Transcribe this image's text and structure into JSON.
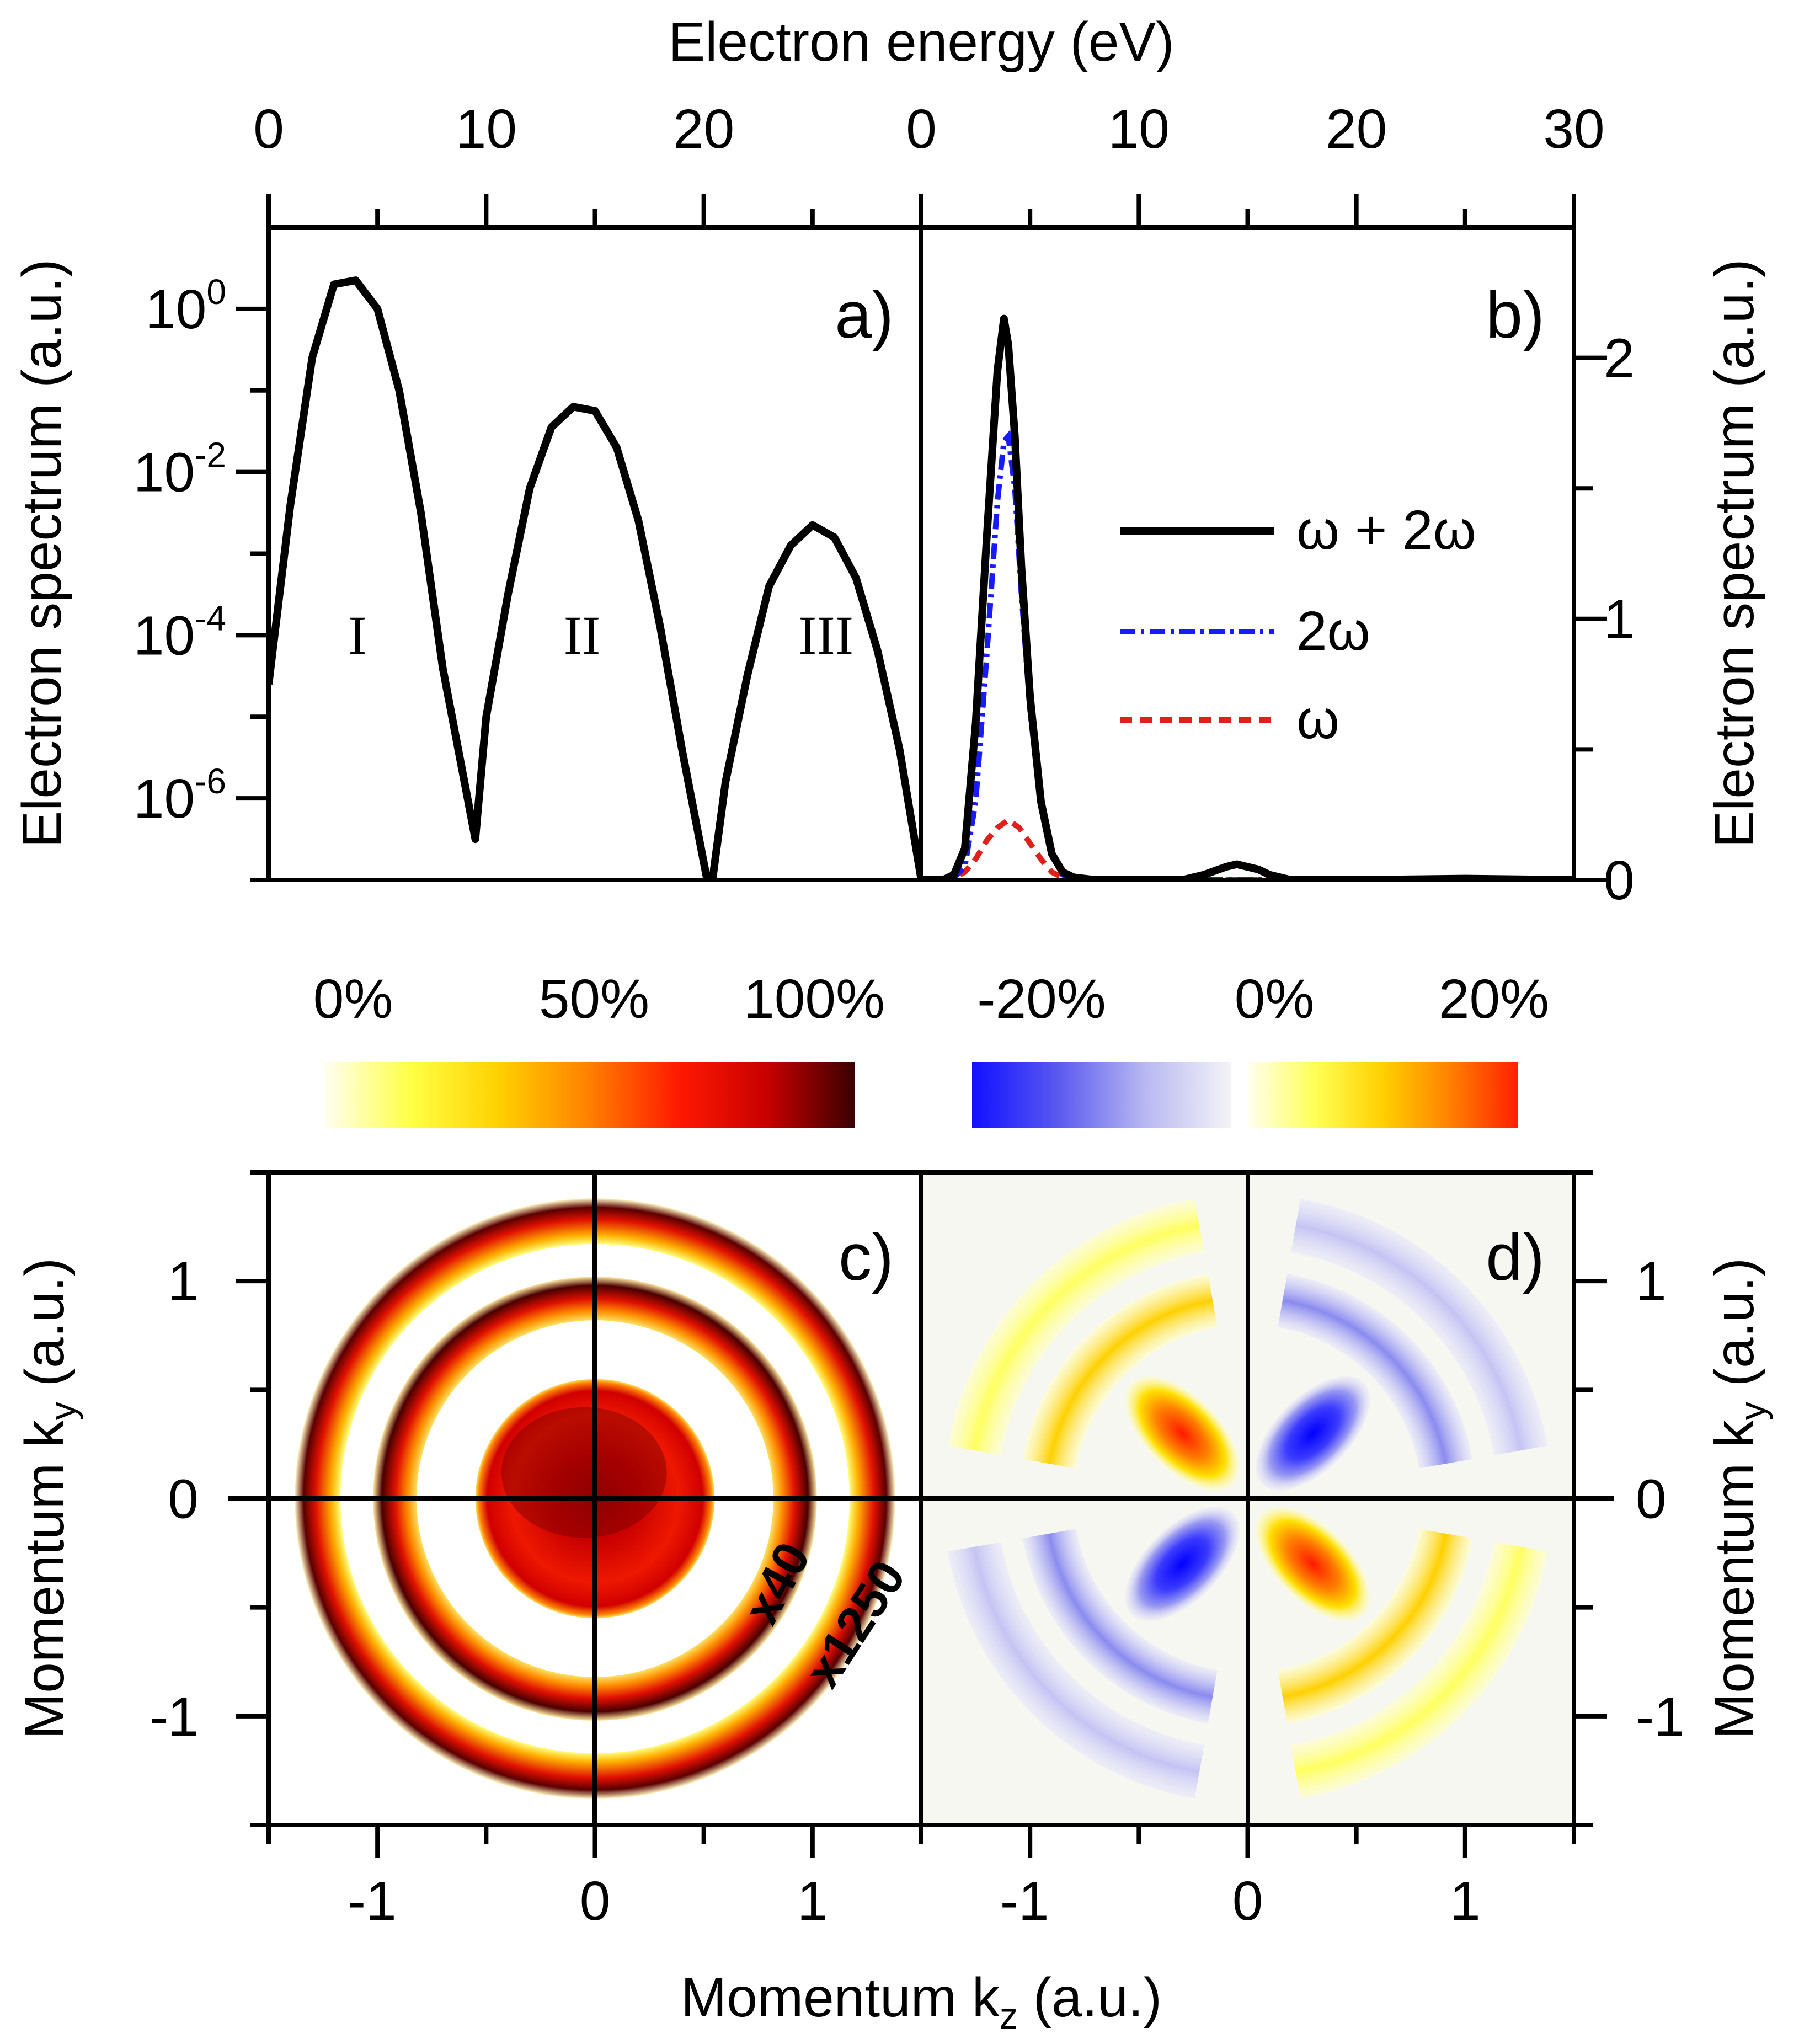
{
  "chart_data": [
    {
      "panel": "a)",
      "type": "line",
      "title": "",
      "top_axis_label": "Electron energy (eV)",
      "xlim": [
        0,
        30
      ],
      "xticks": [
        0,
        10,
        20
      ],
      "ylabel": "Electron spectrum (a.u.)",
      "yscale": "log",
      "ylim_exp": [
        -7,
        1
      ],
      "ytick_exponents": [
        0,
        -2,
        -4,
        -6
      ],
      "yticks": [
        "10^0",
        "10^-2",
        "10^-4",
        "10^-6"
      ],
      "region_labels": [
        "I",
        "II",
        "III"
      ],
      "series": [
        {
          "name": "ω + 2ω",
          "color": "#000000",
          "x": [
            0,
            1,
            2,
            3,
            4,
            5,
            6,
            7,
            8,
            9.5,
            10,
            11,
            12,
            13,
            14,
            15,
            16,
            17,
            18,
            19,
            20.3,
            21,
            22,
            23,
            24,
            25,
            26,
            27,
            28,
            29,
            30
          ],
          "log10_y": [
            -4.6,
            -2.4,
            -0.6,
            0.3,
            0.35,
            0.0,
            -1.0,
            -2.5,
            -4.4,
            -6.5,
            -5.0,
            -3.5,
            -2.2,
            -1.45,
            -1.2,
            -1.25,
            -1.7,
            -2.6,
            -3.9,
            -5.4,
            -7.2,
            -5.8,
            -4.5,
            -3.4,
            -2.9,
            -2.65,
            -2.8,
            -3.3,
            -4.2,
            -5.4,
            -7.0
          ]
        }
      ]
    },
    {
      "panel": "b)",
      "type": "line",
      "top_axis_label": "Electron energy (eV)",
      "xlim": [
        0,
        30
      ],
      "xticks": [
        0,
        10,
        20,
        30
      ],
      "ylabel": "Electron spectrum (a.u.)",
      "ylim": [
        0,
        2.5
      ],
      "yticks": [
        0,
        1,
        2
      ],
      "legend": [
        "ω + 2ω",
        "2ω",
        "ω"
      ],
      "series": [
        {
          "name": "ω + 2ω",
          "color": "#000000",
          "style": "solid",
          "x": [
            0,
            1,
            1.5,
            2,
            2.5,
            3,
            3.5,
            3.8,
            4,
            4.3,
            4.6,
            5,
            5.5,
            6,
            6.5,
            7,
            8,
            10,
            12,
            13,
            14,
            14.5,
            15,
            15.5,
            16,
            17,
            18,
            20,
            25,
            30
          ],
          "y": [
            0,
            0.0,
            0.02,
            0.12,
            0.6,
            1.3,
            1.95,
            2.15,
            2.05,
            1.7,
            1.2,
            0.7,
            0.3,
            0.1,
            0.03,
            0.01,
            0.0,
            0.0,
            0.0,
            0.02,
            0.05,
            0.06,
            0.05,
            0.04,
            0.02,
            0.0,
            0.0,
            0.0,
            0.005,
            0.0
          ]
        },
        {
          "name": "2ω",
          "color": "#1a1aff",
          "style": "dash-dot",
          "x": [
            0,
            1,
            1.5,
            2,
            2.5,
            3,
            3.5,
            3.8,
            4,
            4.3,
            4.6,
            5,
            5.5,
            6,
            6.5,
            7,
            8,
            30
          ],
          "y": [
            0,
            0.0,
            0.01,
            0.05,
            0.3,
            0.85,
            1.45,
            1.68,
            1.7,
            1.5,
            1.1,
            0.65,
            0.28,
            0.1,
            0.02,
            0.0,
            0.0,
            0.0
          ]
        },
        {
          "name": "ω",
          "color": "#e0201a",
          "style": "dashed",
          "x": [
            0,
            1,
            1.5,
            2,
            2.5,
            3,
            3.5,
            4,
            4.5,
            5,
            5.5,
            6,
            6.5,
            7,
            8,
            30
          ],
          "y": [
            0,
            0.0,
            0.01,
            0.03,
            0.08,
            0.15,
            0.2,
            0.23,
            0.2,
            0.14,
            0.08,
            0.03,
            0.01,
            0.0,
            0.0,
            0.0
          ]
        }
      ]
    },
    {
      "panel": "c)",
      "type": "heatmap",
      "xlabel": "Momentum k_z (a.u.)",
      "ylabel": "Momentum k_y (a.u.)",
      "xlim": [
        -1.5,
        1.5
      ],
      "ylim": [
        -1.5,
        1.5
      ],
      "xticks": [
        -1,
        0,
        1
      ],
      "yticks": [
        -1,
        0,
        1
      ],
      "colorbar_ticks": [
        "0%",
        "50%",
        "100%"
      ],
      "colorbar_stops": [
        "#fffff6",
        "#ffff44",
        "#ffd000",
        "#ff8000",
        "#ff1a00",
        "#c80000",
        "#3a0000"
      ],
      "annotations": [
        "x40",
        "x1250"
      ],
      "rings": [
        {
          "r_inner": 0.0,
          "r_outer": 0.55,
          "level": 0.9
        },
        {
          "r_inner": 0.82,
          "r_outer": 1.02,
          "level": 0.75
        },
        {
          "r_inner": 1.17,
          "r_outer": 1.38,
          "level": 0.7
        }
      ]
    },
    {
      "panel": "d)",
      "type": "heatmap",
      "xlabel": "Momentum k_z (a.u.)",
      "ylabel": "Momentum k_y (a.u.)",
      "xlim": [
        -1.5,
        1.5
      ],
      "ylim": [
        -1.5,
        1.5
      ],
      "xticks": [
        -1,
        0,
        1
      ],
      "yticks": [
        -1,
        0,
        1
      ],
      "colorbar_ticks": [
        "-20%",
        "0%",
        "20%"
      ],
      "colorbar_negative_stops": [
        "#1010ff",
        "#5a5af0",
        "#b8b8f2",
        "#f4f4f8"
      ],
      "colorbar_positive_stops": [
        "#fffff0",
        "#ffff55",
        "#ffd000",
        "#ff8000",
        "#ff2000"
      ],
      "quadrant_sign": {
        "upper_left": 1,
        "upper_right": -1,
        "lower_left": -1,
        "lower_right": 1
      }
    }
  ]
}
